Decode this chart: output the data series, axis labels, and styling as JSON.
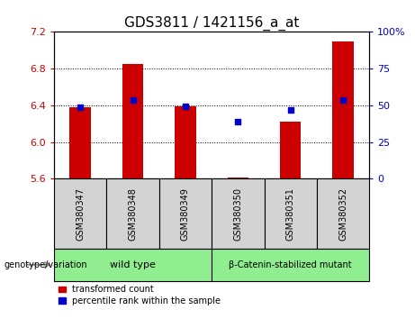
{
  "title": "GDS3811 / 1421156_a_at",
  "samples": [
    "GSM380347",
    "GSM380348",
    "GSM380349",
    "GSM380350",
    "GSM380351",
    "GSM380352"
  ],
  "bar_values": [
    6.38,
    6.85,
    6.39,
    5.61,
    6.22,
    7.1
  ],
  "bar_baseline": 5.6,
  "blue_values_left": [
    6.38,
    6.46,
    6.39,
    6.22,
    6.35,
    6.46
  ],
  "ylim_left": [
    5.6,
    7.2
  ],
  "ylim_right": [
    0,
    100
  ],
  "yticks_left": [
    5.6,
    6.0,
    6.4,
    6.8,
    7.2
  ],
  "yticks_right": [
    0,
    25,
    50,
    75,
    100
  ],
  "ytick_labels_right": [
    "0",
    "25",
    "50",
    "75",
    "100%"
  ],
  "bar_color": "#cc0000",
  "blue_color": "#0000cc",
  "group1_label": "wild type",
  "group2_label": "β-Catenin-stabilized mutant",
  "group1_indices": [
    0,
    1,
    2
  ],
  "group2_indices": [
    3,
    4,
    5
  ],
  "group_bg_color": "#90ee90",
  "sample_bg_color": "#d3d3d3",
  "genotype_label": "genotype/variation",
  "legend1": "transformed count",
  "legend2": "percentile rank within the sample",
  "title_fontsize": 11,
  "tick_fontsize": 8,
  "label_fontsize": 8,
  "grid_yticks": [
    6.0,
    6.4,
    6.8
  ],
  "bar_width": 0.4
}
